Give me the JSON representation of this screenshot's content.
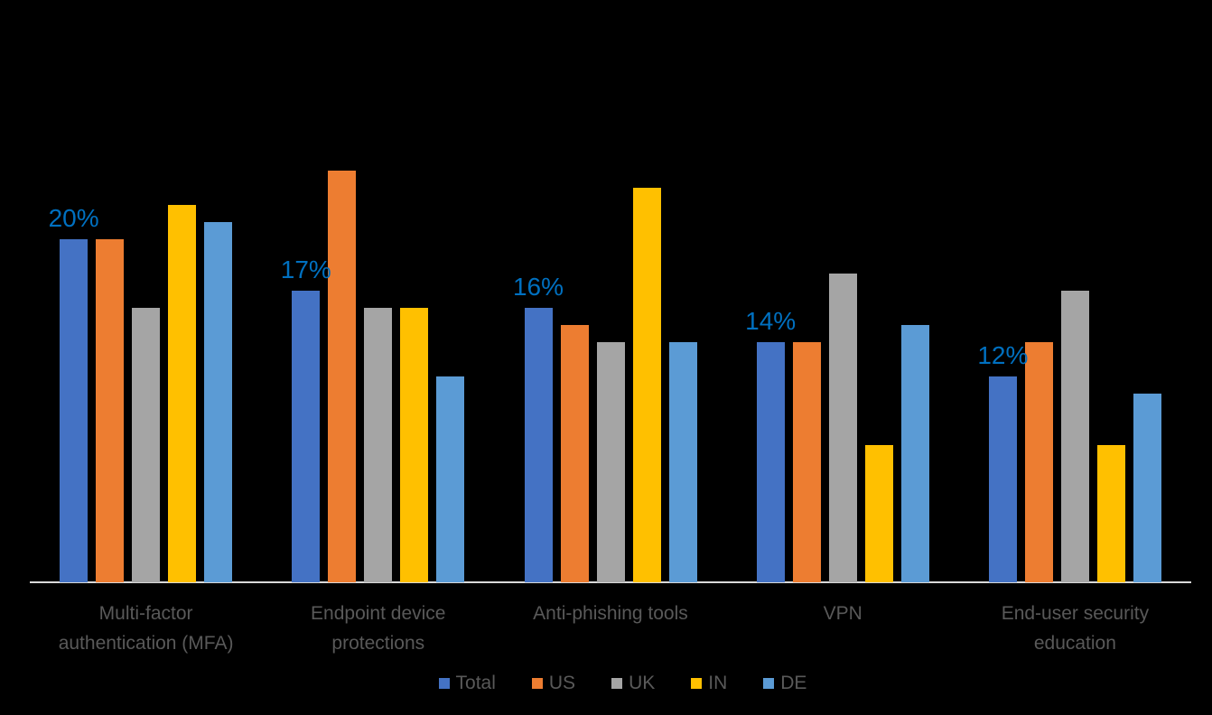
{
  "background_color": "#000000",
  "axis_color": "#D9D9D9",
  "category_text_color": "#595959",
  "legend_text_color": "#595959",
  "data_label_color": "#0070C0",
  "chart_data": {
    "type": "bar",
    "unit": "percent",
    "title": "",
    "xlabel": "",
    "ylabel": "",
    "ylim": [
      0,
      25
    ],
    "grid": false,
    "y_axis_visible": false,
    "categories": [
      "Multi-factor authentication (MFA)",
      "Endpoint device protections",
      "Anti-phishing tools",
      "VPN",
      "End-user security education"
    ],
    "category_label_lines": [
      [
        "Multi-factor",
        "authentication (MFA)"
      ],
      [
        "Endpoint device",
        "protections"
      ],
      [
        "Anti-phishing tools"
      ],
      [
        "VPN"
      ],
      [
        "End-user security",
        "education"
      ]
    ],
    "series": [
      {
        "name": "Total",
        "color": "#4472C4",
        "values": [
          20,
          17,
          16,
          14,
          12
        ]
      },
      {
        "name": "US",
        "color": "#ED7D31",
        "values": [
          20,
          24,
          15,
          14,
          14
        ]
      },
      {
        "name": "UK",
        "color": "#A5A5A5",
        "values": [
          16,
          16,
          14,
          18,
          17
        ]
      },
      {
        "name": "IN",
        "color": "#FFC000",
        "values": [
          22,
          16,
          23,
          8,
          8
        ]
      },
      {
        "name": "DE",
        "color": "#5B9BD5",
        "values": [
          21,
          12,
          14,
          15,
          11
        ]
      }
    ],
    "data_labels": {
      "on_series": "Total",
      "values": [
        "20%",
        "17%",
        "16%",
        "14%",
        "12%"
      ]
    },
    "legend": {
      "position": "bottom",
      "entries": [
        "Total",
        "US",
        "UK",
        "IN",
        "DE"
      ]
    }
  }
}
